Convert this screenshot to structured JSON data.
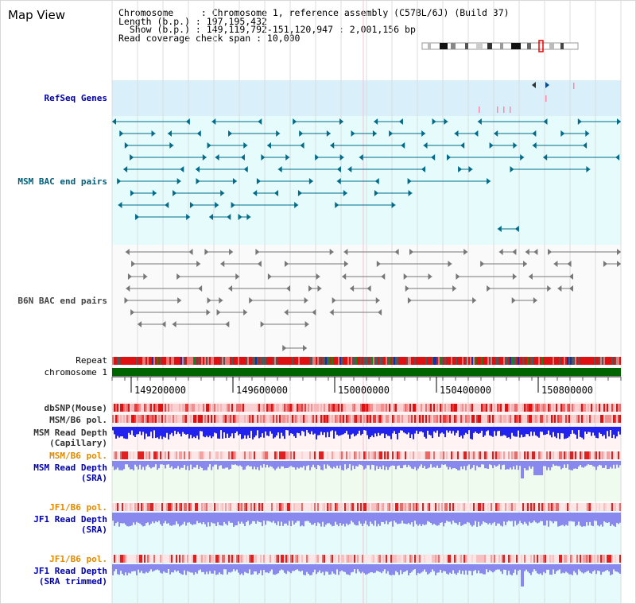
{
  "page": {
    "title": "Map View"
  },
  "info": {
    "chromosome_line": "Chromosome     : Chromosome 1, reference assembly (C57BL/6J) (Build 37)",
    "length_line": "Length (b.p.) : 197,195,432",
    "show_line": "  Show (b.p.) : 149,119,792-151,120,947 : 2,001,156 bp",
    "coverage_line": "Read coverage check span : 10,000"
  },
  "tracks": {
    "refseq": {
      "label": "RefSeq Genes",
      "color": "#0000aa"
    },
    "msm_bac": {
      "label": "MSM BAC end pairs",
      "color": "#005f7a"
    },
    "b6n_bac": {
      "label": "B6N BAC end pairs",
      "color": "#444444"
    },
    "repeat": {
      "label": "Repeat",
      "color": "#000000"
    },
    "chromosome": {
      "label": "chromosome 1",
      "color": "#000000"
    },
    "dbsnp": {
      "label": "dbSNP(Mouse)",
      "color": "#333333"
    },
    "msm_b6_pol": {
      "label": "MSM/B6 pol.",
      "color": "#333333"
    },
    "msm_depth_cap": {
      "label": "MSM Read Depth\n(Capillary)",
      "color": "#333333"
    },
    "msm_b6_pol_2": {
      "label": "MSM/B6 pol.",
      "color": "#e08a00"
    },
    "msm_depth_sra": {
      "label": "MSM Read Depth\n(SRA)",
      "color": "#0000aa"
    },
    "jf1_b6_pol": {
      "label": "JF1/B6 pol.",
      "color": "#e08a00"
    },
    "jf1_depth_sra": {
      "label": "JF1 Read Depth\n(SRA)",
      "color": "#0000aa"
    },
    "jf1_b6_pol_2": {
      "label": "JF1/B6 pol.",
      "color": "#e08a00"
    },
    "jf1_depth_trim": {
      "label": "JF1 Read Depth\n(SRA trimmed)",
      "color": "#0000aa"
    }
  },
  "axis": {
    "ticks": [
      "149200000",
      "149600000",
      "150000000",
      "150400000",
      "150800000"
    ]
  },
  "colors": {
    "refseq_bg": "#d9f0fb",
    "msm_bg": "#e6fbfb",
    "b6n_bg": "#fafafa",
    "msm_glyph": "#006c8a",
    "b6n_glyph": "#777777",
    "chromosome_bar": "#006400",
    "depth_cap": "#2222ee",
    "depth_sra": "#8888ee"
  }
}
